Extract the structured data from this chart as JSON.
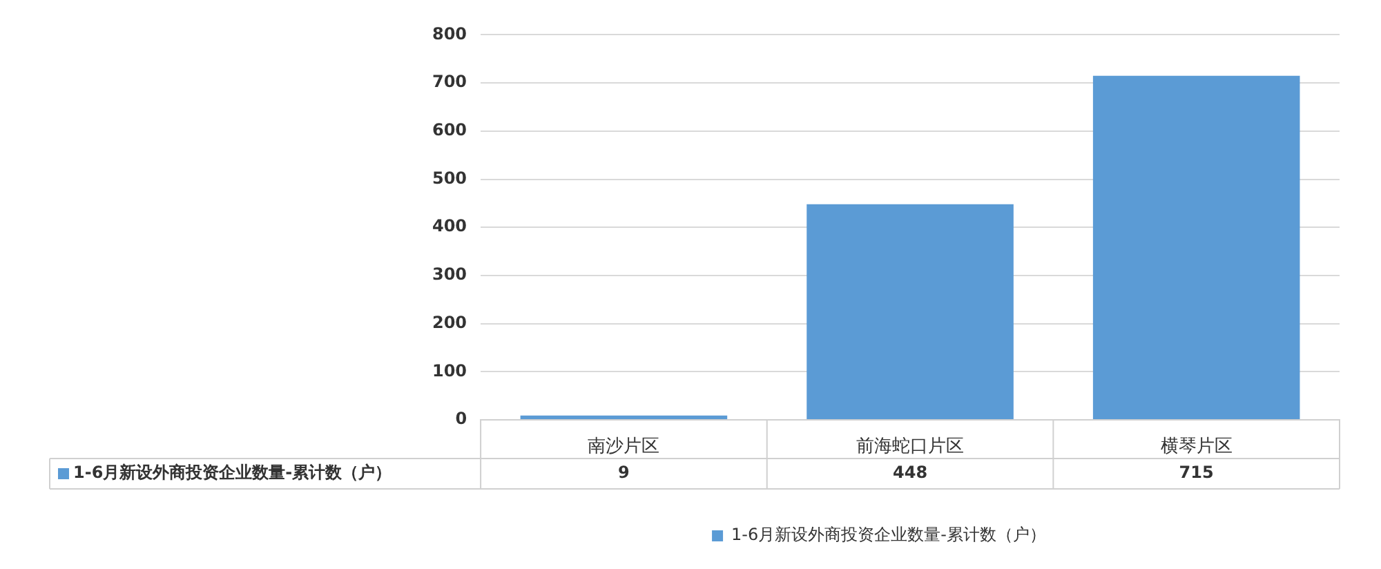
{
  "chart_data": {
    "type": "bar",
    "categories": [
      "南沙片区",
      "前海蛇口片区",
      "横琴片区"
    ],
    "series": [
      {
        "name": "1-6月新设外商投资企业数量-累计数（户）",
        "color": "#5b9bd5",
        "values": [
          9,
          448,
          715
        ]
      }
    ],
    "ylim": [
      0,
      800
    ],
    "yticks": [
      0,
      100,
      200,
      300,
      400,
      500,
      600,
      700,
      800
    ],
    "grid": "y",
    "legend": "bottom",
    "data_labels": true
  }
}
